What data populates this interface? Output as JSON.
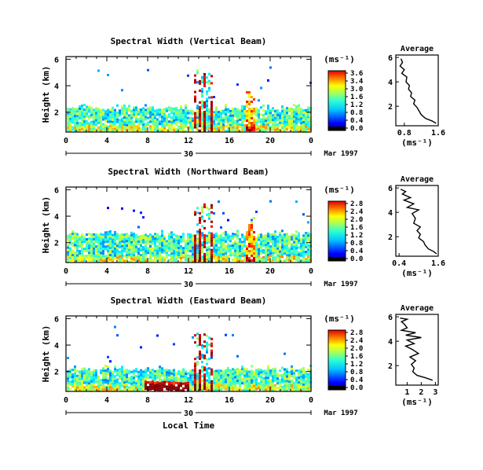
{
  "chart_data": [
    {
      "type": "heatmap",
      "title": "Spectral Width (Vertical Beam)",
      "ylabel": "Height (km)",
      "x_ticks": [
        "0",
        "4",
        "8",
        "12",
        "16",
        "20",
        "0"
      ],
      "y_ticks": [
        "6",
        "4",
        "2"
      ],
      "date_label": "30",
      "date_suffix": "Mar 1997",
      "units": "(ms⁻¹)",
      "colorbar_ticks": [
        "3.6",
        "3.4",
        "3.0",
        "1.6",
        "1.2",
        "0.8",
        "0.4",
        "0.0"
      ],
      "profile": {
        "title": "Average",
        "xlabel": "(ms⁻¹)",
        "x_ticks": [
          "0.8",
          "1.6"
        ],
        "y_ticks": [
          "6",
          "4",
          "2"
        ],
        "xlim": [
          0.6,
          1.6
        ],
        "points": [
          [
            0.72,
            5.9
          ],
          [
            0.76,
            5.6
          ],
          [
            0.7,
            5.3
          ],
          [
            0.8,
            5.0
          ],
          [
            0.74,
            4.7
          ],
          [
            0.86,
            4.4
          ],
          [
            0.84,
            4.0
          ],
          [
            0.92,
            3.7
          ],
          [
            0.9,
            3.4
          ],
          [
            0.97,
            3.1
          ],
          [
            0.95,
            2.8
          ],
          [
            1.05,
            2.5
          ],
          [
            1.02,
            2.2
          ],
          [
            1.1,
            1.9
          ],
          [
            1.15,
            1.6
          ],
          [
            1.2,
            1.3
          ],
          [
            1.3,
            1.0
          ],
          [
            1.45,
            0.8
          ],
          [
            1.55,
            0.6
          ]
        ]
      }
    },
    {
      "type": "heatmap",
      "title": "Spectral Width (Northward Beam)",
      "ylabel": "Height (km)",
      "x_ticks": [
        "0",
        "4",
        "8",
        "12",
        "16",
        "20",
        "0"
      ],
      "y_ticks": [
        "6",
        "4",
        "2"
      ],
      "date_label": "30",
      "date_suffix": "Mar 1997",
      "units": "(ms⁻¹)",
      "colorbar_ticks": [
        "2.8",
        "2.4",
        "2.0",
        "1.6",
        "1.2",
        "0.8",
        "0.4",
        "0.0"
      ],
      "profile": {
        "title": "Average",
        "xlabel": "(ms⁻¹)",
        "x_ticks": [
          "0.4",
          "1.6"
        ],
        "y_ticks": [
          "6",
          "4",
          "2"
        ],
        "xlim": [
          0.3,
          1.6
        ],
        "points": [
          [
            0.45,
            5.9
          ],
          [
            0.6,
            5.7
          ],
          [
            0.5,
            5.5
          ],
          [
            0.75,
            5.2
          ],
          [
            0.55,
            5.0
          ],
          [
            0.85,
            4.7
          ],
          [
            0.65,
            4.4
          ],
          [
            1.0,
            4.2
          ],
          [
            0.8,
            3.9
          ],
          [
            0.9,
            3.5
          ],
          [
            0.85,
            3.1
          ],
          [
            1.05,
            2.8
          ],
          [
            0.95,
            2.5
          ],
          [
            1.05,
            2.2
          ],
          [
            1.0,
            1.9
          ],
          [
            1.15,
            1.6
          ],
          [
            1.2,
            1.3
          ],
          [
            1.3,
            1.0
          ],
          [
            1.45,
            0.8
          ],
          [
            1.55,
            0.6
          ]
        ]
      }
    },
    {
      "type": "heatmap",
      "title": "Spectral Width (Eastward Beam)",
      "ylabel": "Height (km)",
      "x_ticks": [
        "0",
        "4",
        "8",
        "12",
        "16",
        "20",
        "0"
      ],
      "y_ticks": [
        "6",
        "4",
        "2"
      ],
      "date_label": "30",
      "date_suffix": "Mar 1997",
      "xlabel": "Local Time",
      "units": "(ms⁻¹)",
      "colorbar_ticks": [
        "2.8",
        "2.4",
        "2.0",
        "1.6",
        "1.2",
        "0.8",
        "0.4",
        "0.0"
      ],
      "profile": {
        "title": "Average",
        "xlabel": "(ms⁻¹)",
        "x_ticks": [
          "1",
          "2",
          "3"
        ],
        "y_ticks": [
          "6",
          "4",
          "2"
        ],
        "xlim": [
          0.2,
          3.2
        ],
        "points": [
          [
            0.5,
            5.9
          ],
          [
            1.0,
            5.8
          ],
          [
            0.6,
            5.6
          ],
          [
            0.8,
            5.4
          ],
          [
            1.0,
            5.1
          ],
          [
            0.6,
            4.9
          ],
          [
            1.6,
            4.7
          ],
          [
            0.9,
            4.5
          ],
          [
            2.0,
            4.3
          ],
          [
            1.0,
            4.1
          ],
          [
            1.5,
            3.8
          ],
          [
            0.9,
            3.6
          ],
          [
            1.4,
            3.3
          ],
          [
            1.8,
            3.0
          ],
          [
            1.2,
            2.7
          ],
          [
            1.6,
            2.4
          ],
          [
            1.3,
            2.1
          ],
          [
            1.5,
            1.8
          ],
          [
            1.4,
            1.5
          ],
          [
            1.7,
            1.2
          ],
          [
            2.3,
            1.0
          ],
          [
            2.8,
            0.8
          ]
        ]
      }
    }
  ]
}
